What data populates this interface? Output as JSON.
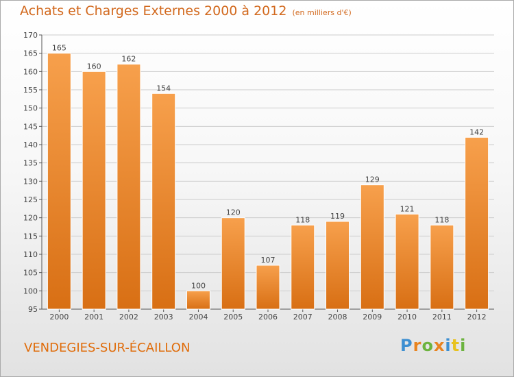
{
  "chart_data": {
    "type": "bar",
    "title": "Achats et Charges Externes 2000 à 2012",
    "subtitle": "(en milliers d'€)",
    "categories": [
      "2000",
      "2001",
      "2002",
      "2003",
      "2004",
      "2005",
      "2006",
      "2007",
      "2008",
      "2009",
      "2010",
      "2011",
      "2012"
    ],
    "values": [
      165,
      160,
      162,
      154,
      100,
      120,
      107,
      118,
      119,
      129,
      121,
      118,
      142
    ],
    "ylim": [
      95,
      170
    ],
    "yticks": [
      95,
      100,
      105,
      110,
      115,
      120,
      125,
      130,
      135,
      140,
      145,
      150,
      155,
      160,
      165,
      170
    ],
    "grid": true,
    "bar_color": "#f0913a",
    "xlabel": "",
    "ylabel": ""
  },
  "location": "VENDEGIES-SUR-ÉCAILLON",
  "brand": {
    "letters": [
      "P",
      "r",
      "o",
      "x",
      "i",
      "t",
      "i"
    ],
    "colors": [
      "#3d8fd1",
      "#e8831f",
      "#6cb33f",
      "#e8831f",
      "#3d8fd1",
      "#e8c21f",
      "#6cb33f"
    ]
  },
  "colors": {
    "title": "#d2691e",
    "location": "#e06c0a",
    "grid": "#cccccc"
  }
}
